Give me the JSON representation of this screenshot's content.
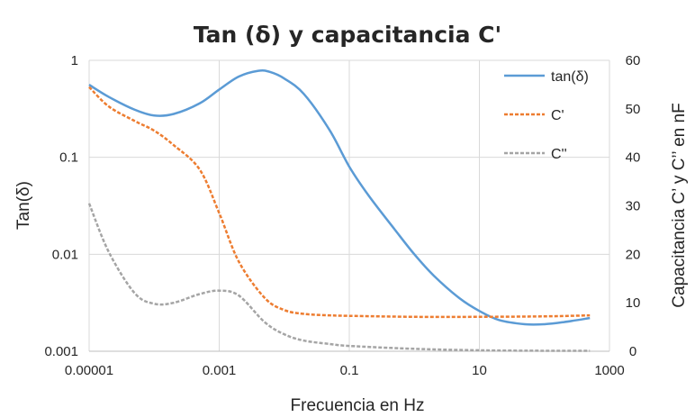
{
  "chart_data": {
    "type": "line",
    "title": "Tan (δ) y capacitancia C'",
    "xlabel": "Frecuencia en Hz",
    "ylabel": "Tan(δ)",
    "y2label": "Capacitancia C’ y C’’ en nF",
    "x_scale": "log",
    "y_scale": "log",
    "xlim": [
      1e-05,
      1000
    ],
    "ylim": [
      0.001,
      1
    ],
    "y2lim": [
      0,
      60
    ],
    "x_ticks": [
      "0.00001",
      "0.001",
      "0.1",
      "10",
      "1000"
    ],
    "y_ticks": [
      "1",
      "0.1",
      "0.01",
      "0.001"
    ],
    "y2_ticks": [
      "60",
      "50",
      "40",
      "30",
      "20",
      "10",
      "0"
    ],
    "grid": true,
    "legend_position": "top-right",
    "series": [
      {
        "name": "tan(δ)",
        "axis": "left",
        "color": "#5b9bd5",
        "dash": "solid",
        "points": [
          [
            1e-05,
            0.56
          ],
          [
            2e-05,
            0.42
          ],
          [
            5e-05,
            0.31
          ],
          [
            0.0001,
            0.27
          ],
          [
            0.0002,
            0.28
          ],
          [
            0.0005,
            0.36
          ],
          [
            0.001,
            0.5
          ],
          [
            0.002,
            0.68
          ],
          [
            0.004,
            0.78
          ],
          [
            0.006,
            0.76
          ],
          [
            0.01,
            0.65
          ],
          [
            0.02,
            0.45
          ],
          [
            0.05,
            0.19
          ],
          [
            0.1,
            0.08
          ],
          [
            0.2,
            0.04
          ],
          [
            0.5,
            0.018
          ],
          [
            1,
            0.01
          ],
          [
            2,
            0.006
          ],
          [
            5,
            0.0035
          ],
          [
            10,
            0.0026
          ],
          [
            20,
            0.0021
          ],
          [
            50,
            0.0019
          ],
          [
            100,
            0.0019
          ],
          [
            200,
            0.002
          ],
          [
            500,
            0.0022
          ]
        ]
      },
      {
        "name": "C'",
        "axis": "right",
        "color": "#ed7d31",
        "dash": "dashed",
        "points": [
          [
            1e-05,
            54.5
          ],
          [
            2e-05,
            50.5
          ],
          [
            5e-05,
            47.5
          ],
          [
            0.0001,
            45.5
          ],
          [
            0.0002,
            42.5
          ],
          [
            0.0005,
            37.5
          ],
          [
            0.001,
            28.5
          ],
          [
            0.002,
            18.5
          ],
          [
            0.005,
            11
          ],
          [
            0.01,
            8.5
          ],
          [
            0.02,
            7.7
          ],
          [
            0.05,
            7.4
          ],
          [
            0.1,
            7.3
          ],
          [
            1,
            7.1
          ],
          [
            10,
            7.1
          ],
          [
            100,
            7.2
          ],
          [
            500,
            7.4
          ]
        ]
      },
      {
        "name": "C''",
        "axis": "right",
        "color": "#a5a5a5",
        "dash": "dashed",
        "points": [
          [
            1e-05,
            30.5
          ],
          [
            2e-05,
            20.5
          ],
          [
            5e-05,
            12
          ],
          [
            0.0001,
            9.8
          ],
          [
            0.0002,
            10
          ],
          [
            0.0005,
            11.8
          ],
          [
            0.001,
            12.5
          ],
          [
            0.002,
            11.5
          ],
          [
            0.005,
            6
          ],
          [
            0.01,
            3.5
          ],
          [
            0.02,
            2.2
          ],
          [
            0.05,
            1.5
          ],
          [
            0.1,
            1.1
          ],
          [
            1,
            0.5
          ],
          [
            10,
            0.2
          ],
          [
            100,
            0.1
          ],
          [
            500,
            0.1
          ]
        ]
      }
    ]
  }
}
